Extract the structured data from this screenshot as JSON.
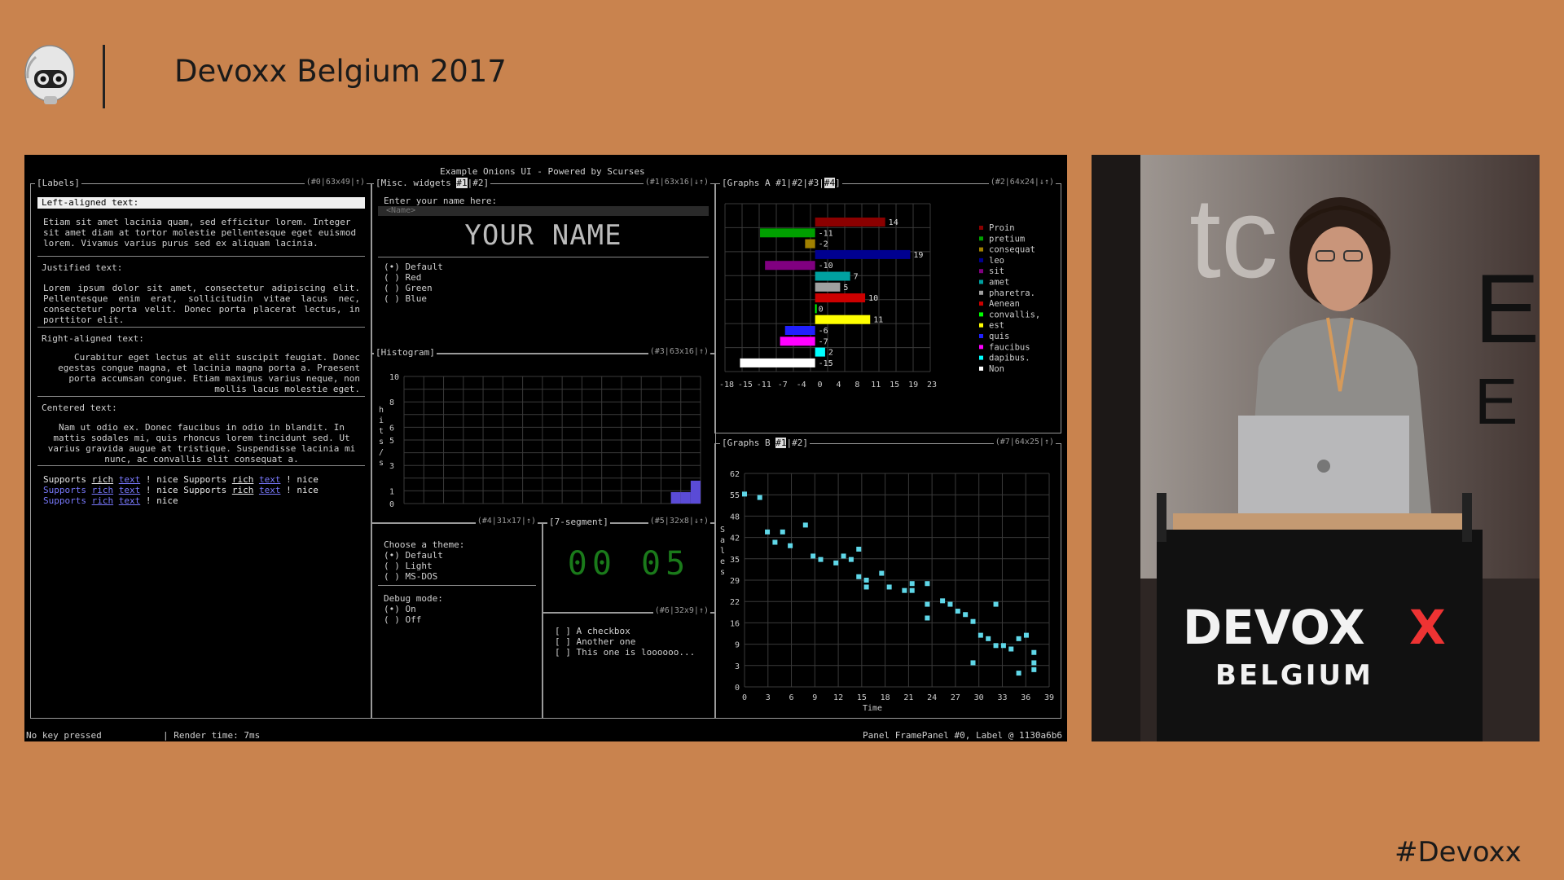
{
  "header": {
    "title": "Devoxx Belgium 2017",
    "hashtag": "#Devoxx"
  },
  "terminal": {
    "title": "Example Onions UI - Powered by Scurses",
    "status_left": "No key pressed",
    "status_render": "| Render time: 7ms",
    "status_right": "Panel FramePanel #0, Label @ 1130a6b6"
  },
  "labels_panel": {
    "title": "[Labels]",
    "info": "(#0|63x49|↑)",
    "left_header": "Left-aligned text:",
    "left_text": "Etiam sit amet lacinia quam, sed efficitur lorem. Integer sit amet diam at tortor molestie pellentesque eget euismod lorem. Vivamus varius purus sed ex aliquam lacinia.",
    "justified_header": "Justified text:",
    "justified_text": "Lorem ipsum dolor sit amet, consectetur adipiscing elit. Pellentesque enim erat, sollicitudin vitae lacus nec, consectetur porta velit. Donec porta placerat lectus, in porttitor elit.",
    "right_header": "Right-aligned text:",
    "right_text": "Curabitur eget lectus at elit suscipit feugiat. Donec egestas congue magna, et lacinia magna porta a. Praesent porta accumsan congue. Etiam maximus varius neque, non mollis lacus molestie eget.",
    "centered_header": "Centered text:",
    "centered_text": "Nam ut odio ex. Donec faucibus in odio in blandit. In mattis sodales mi, quis rhoncus lorem tincidunt sed. Ut varius gravida augue at tristique. Suspendisse lacinia mi nunc, ac convallis elit consequat a.",
    "rich": {
      "supports": "Supports",
      "rich": "rich",
      "text": "text",
      "nice": "! nice"
    }
  },
  "misc_panel": {
    "title": "[Misc. widgets ",
    "tab1": "#1",
    "tab2": "|#2]",
    "info": "(#1|63x16|↓↑)",
    "name_label": "Enter your name here:",
    "name_placeholder": "<Name>",
    "name_display": "YOUR NAME",
    "radios": [
      "(•) Default",
      "( ) Red",
      "( ) Green",
      "( ) Blue"
    ]
  },
  "histogram_panel": {
    "title": "[Histogram]",
    "info": "(#3|63x16|↑)",
    "ylabel": "h i t s / s",
    "yticks": [
      "10",
      "8",
      "6",
      "5",
      "3",
      "1",
      "0"
    ]
  },
  "theme_panel": {
    "info": "(#4|31x17|↑)",
    "label": "Choose a theme:",
    "options": [
      "(•) Default",
      "( ) Light",
      "( ) MS-DOS"
    ],
    "debug_label": "Debug mode:",
    "debug_options": [
      "(•) On",
      "( ) Off"
    ]
  },
  "segment_panel": {
    "title": "[7-segment]",
    "info": "(#5|32x8|↓↑)",
    "value": "00 05",
    "color": "#1a6a1a"
  },
  "checkbox_panel": {
    "info": "(#6|32x9|↑)",
    "items": [
      "[ ] A checkbox",
      "[ ] Another one",
      "[ ] This one is loooooo..."
    ]
  },
  "graphs_a": {
    "title_prefix": "[Graphs A ",
    "tabs": [
      "#1|",
      "#2|",
      "#3|",
      "#4"
    ],
    "title_suffix": "]",
    "info": "(#2|64x24|↓↑)"
  },
  "graphs_b": {
    "title_prefix": "[Graphs B ",
    "tab_active": "#1",
    "title_suffix": "|#2]",
    "info": "(#7|64x25|↑)"
  },
  "chart_data": [
    {
      "type": "bar",
      "orientation": "horizontal",
      "categories": [
        "Proin",
        "pretium",
        "consequat",
        "leo",
        "sit",
        "amet",
        "pharetra.",
        "Aenean",
        "convallis,",
        "est",
        "quis",
        "faucibus",
        "dapibus.",
        "Non"
      ],
      "values": [
        14,
        -11,
        -2,
        19,
        -10,
        7,
        5,
        10,
        0,
        11,
        -6,
        -7,
        2,
        -15
      ],
      "colors": [
        "#8b0000",
        "#00a000",
        "#a08000",
        "#000090",
        "#800080",
        "#00a0a0",
        "#a0a0a0",
        "#cc0000",
        "#00ff00",
        "#ffff00",
        "#2020ff",
        "#ff00ff",
        "#00ffff",
        "#ffffff"
      ],
      "xticks": [
        "-18",
        "-15",
        "-11",
        "-7",
        "-4",
        "0",
        "4",
        "8",
        "11",
        "15",
        "19",
        "23"
      ],
      "xlim": [
        -18,
        23
      ],
      "grid": true,
      "legend": "right"
    },
    {
      "type": "histogram",
      "bins": 30,
      "values": [
        0,
        0,
        0,
        0,
        0,
        0,
        0,
        0,
        0,
        0,
        0,
        0,
        0,
        0,
        0,
        0,
        0,
        0,
        0,
        0,
        0,
        0,
        0,
        0,
        0,
        0,
        0,
        1,
        1,
        2
      ],
      "ylim": [
        0,
        10
      ],
      "color": "#5a4bd6",
      "grid": true
    },
    {
      "type": "scatter",
      "xlabel": "Time",
      "ylabel": "Sales",
      "xticks": [
        "0",
        "3",
        "6",
        "9",
        "12",
        "15",
        "18",
        "21",
        "24",
        "27",
        "30",
        "33",
        "36",
        "39"
      ],
      "yticks": [
        "62",
        "55",
        "48",
        "42",
        "35",
        "29",
        "22",
        "16",
        "9",
        "3",
        "0"
      ],
      "xlim": [
        0,
        40
      ],
      "ylim": [
        0,
        62
      ],
      "color": "#5fd7e8",
      "grid": true,
      "points": [
        [
          0,
          56
        ],
        [
          3,
          45
        ],
        [
          4,
          42
        ],
        [
          5,
          45
        ],
        [
          6,
          41
        ],
        [
          8,
          47
        ],
        [
          9,
          38
        ],
        [
          10,
          37
        ],
        [
          12,
          36
        ],
        [
          13,
          38
        ],
        [
          14,
          37
        ],
        [
          15,
          40
        ],
        [
          15,
          32
        ],
        [
          16,
          31
        ],
        [
          16,
          29
        ],
        [
          18,
          33
        ],
        [
          19,
          29
        ],
        [
          21,
          28
        ],
        [
          22,
          30
        ],
        [
          22,
          28
        ],
        [
          24,
          30
        ],
        [
          24,
          24
        ],
        [
          24,
          20
        ],
        [
          26,
          25
        ],
        [
          27,
          24
        ],
        [
          28,
          22
        ],
        [
          29,
          21
        ],
        [
          30,
          19
        ],
        [
          31,
          15
        ],
        [
          32,
          14
        ],
        [
          33,
          12
        ],
        [
          33,
          24
        ],
        [
          34,
          12
        ],
        [
          35,
          11
        ],
        [
          36,
          14
        ],
        [
          37,
          15
        ],
        [
          38,
          10
        ],
        [
          38,
          7
        ],
        [
          38,
          5
        ],
        [
          36,
          4
        ],
        [
          30,
          7
        ],
        [
          2,
          55
        ]
      ]
    }
  ]
}
